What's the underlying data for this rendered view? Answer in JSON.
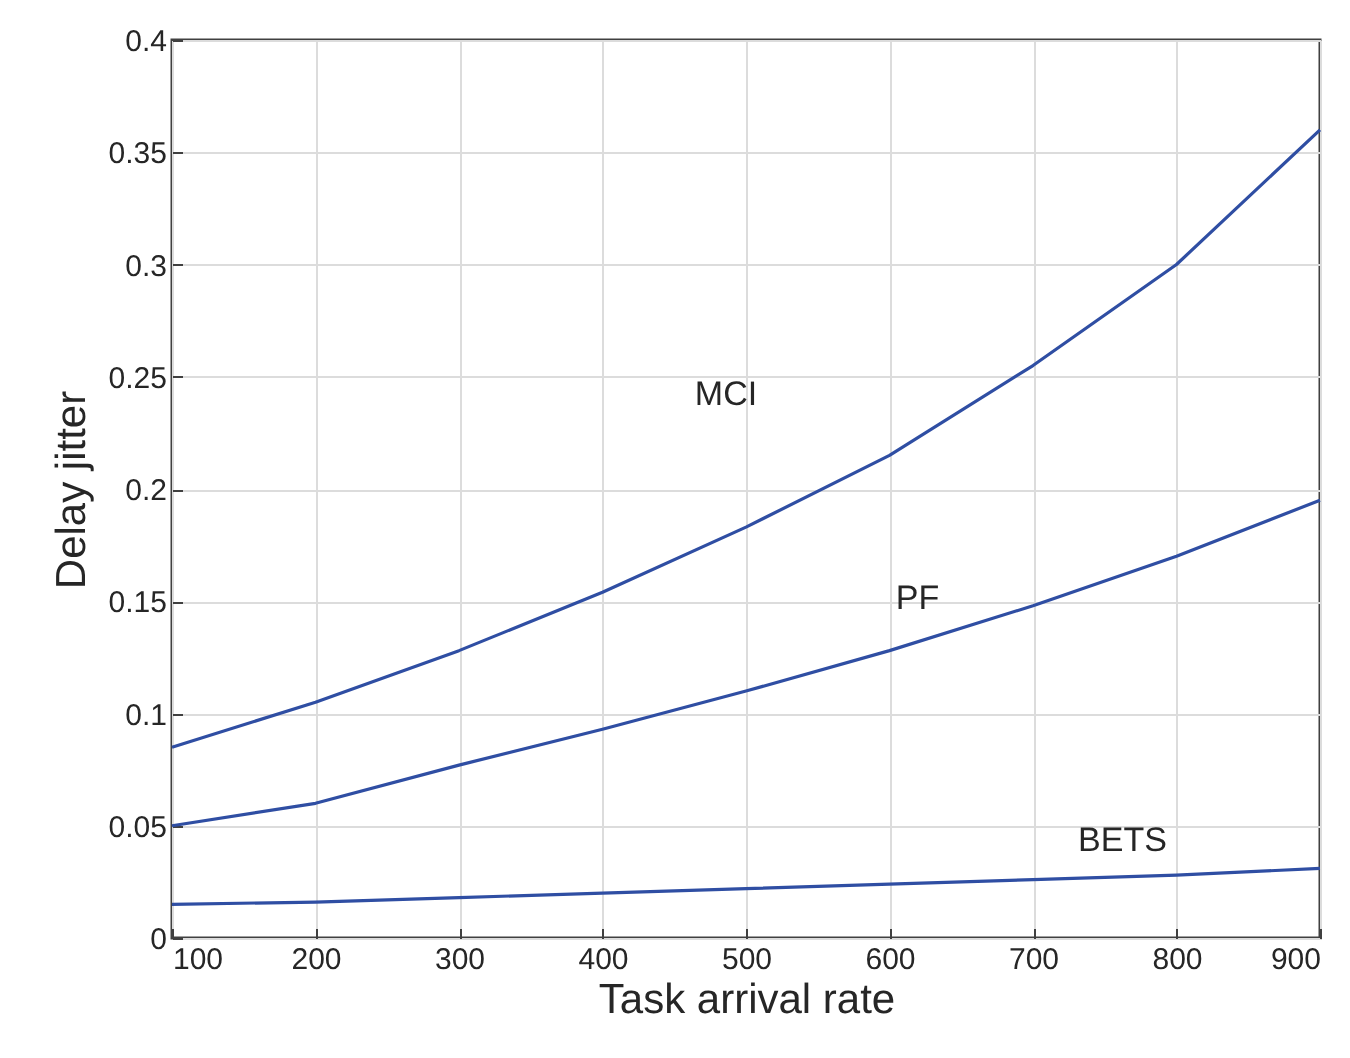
{
  "chart_data": {
    "type": "line",
    "xlabel": "Task arrival rate",
    "ylabel": "Delay jitter",
    "x": [
      100,
      200,
      300,
      400,
      500,
      600,
      700,
      800,
      900
    ],
    "series": [
      {
        "name": "MCI",
        "color": "#2f4ea3",
        "values": [
          0.085,
          0.105,
          0.128,
          0.154,
          0.183,
          0.215,
          0.255,
          0.3,
          0.36
        ]
      },
      {
        "name": "PF",
        "color": "#2f4ea3",
        "values": [
          0.05,
          0.06,
          0.077,
          0.093,
          0.11,
          0.128,
          0.148,
          0.17,
          0.195
        ]
      },
      {
        "name": "BETS",
        "color": "#2f4ea3",
        "values": [
          0.015,
          0.016,
          0.018,
          0.02,
          0.022,
          0.024,
          0.026,
          0.028,
          0.031
        ]
      }
    ],
    "xlim": [
      100,
      900
    ],
    "xticks": [
      100,
      200,
      300,
      400,
      500,
      600,
      700,
      800,
      900
    ],
    "ylim": [
      0,
      0.4
    ],
    "yticks": [
      0,
      0.05,
      0.1,
      0.15,
      0.2,
      0.25,
      0.3,
      0.35,
      0.4
    ],
    "grid": true,
    "line_style": "solid"
  }
}
